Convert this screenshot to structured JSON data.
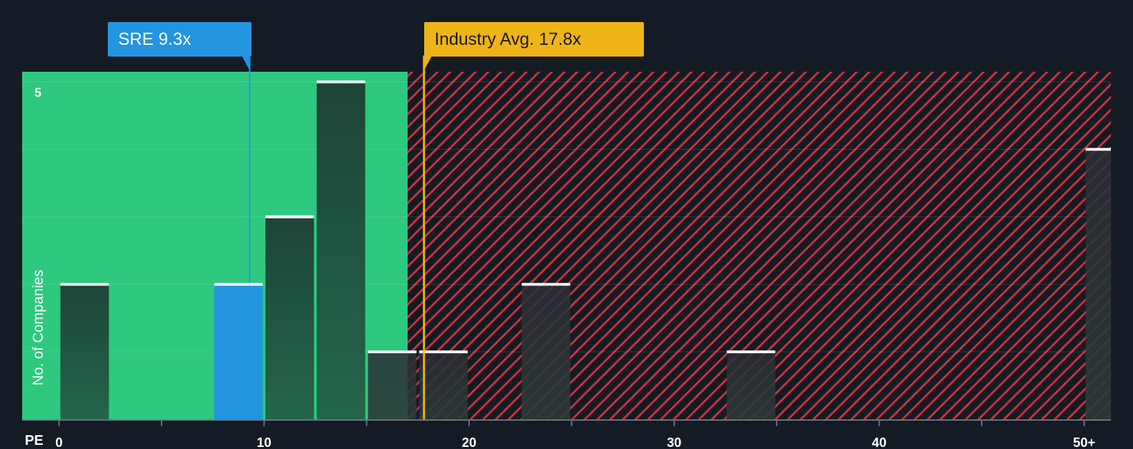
{
  "chart_data": {
    "type": "bar",
    "title": "",
    "xlabel": "PE",
    "ylabel": "No. of Companies",
    "x_tick_labels": [
      "0",
      "10",
      "20",
      "30",
      "40",
      "50+"
    ],
    "x_tick_values": [
      0,
      10,
      20,
      30,
      40,
      50
    ],
    "y_tick_labels": [
      "5"
    ],
    "y_tick_values": [
      5
    ],
    "xlim": [
      -1.8,
      51.3
    ],
    "ylim": [
      0,
      5.15
    ],
    "bin_width": 2.5,
    "bars": [
      {
        "x0": 0,
        "value": 2
      },
      {
        "x0": 7.5,
        "value": 2,
        "highlight": true
      },
      {
        "x0": 10,
        "value": 3
      },
      {
        "x0": 12.5,
        "value": 5
      },
      {
        "x0": 15,
        "value": 1
      },
      {
        "x0": 17.5,
        "value": 1
      },
      {
        "x0": 22.5,
        "value": 2
      },
      {
        "x0": 32.5,
        "value": 1
      },
      {
        "x0": 50,
        "value": 4
      }
    ],
    "fair_zone_end": 17,
    "company": {
      "ticker": "SRE",
      "value": 9.3,
      "label": "SRE 9.3x"
    },
    "industry_avg": {
      "value": 17.8,
      "label": "Industry Avg. 17.8x"
    }
  },
  "colors": {
    "background": "#151b24",
    "fair_zone": "#2ec87e",
    "expensive_stripe": "#c8323c",
    "bar": "#1f4a3e",
    "bar_highlight": "#2394e0",
    "company": "#2394e0",
    "industry": "#eeb418"
  }
}
